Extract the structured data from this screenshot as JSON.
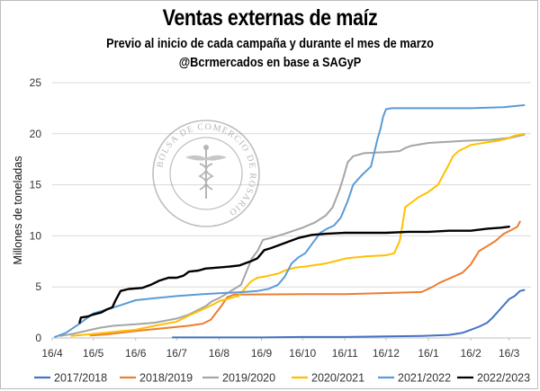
{
  "page": {
    "title": "Ventas externas de maíz",
    "subtitle_line1": "Previo al inicio de cada campaña y durante el mes de marzo",
    "subtitle_line2": "@Bcrmercados en base a SAGyP",
    "watermark_text": "BOLSA DE COMERCIO DE ROSARIO"
  },
  "chart_data": {
    "type": "line",
    "title": "Ventas externas de maíz",
    "subtitle": "Previo al inicio de cada campaña y durante el mes de marzo · @Bcrmercados en base a SAGyP",
    "ylabel": "Millones de toneladas",
    "xlabel": "",
    "ylim": [
      0,
      25
    ],
    "yticks": [
      0,
      5,
      10,
      15,
      20,
      25
    ],
    "xlim_days": [
      0,
      350
    ],
    "grid": "horizontal",
    "legend_position": "bottom",
    "x_ticks": [
      {
        "label": "16/4",
        "day": 0
      },
      {
        "label": "16/5",
        "day": 30
      },
      {
        "label": "16/6",
        "day": 61
      },
      {
        "label": "16/7",
        "day": 91
      },
      {
        "label": "16/8",
        "day": 122
      },
      {
        "label": "16/9",
        "day": 153
      },
      {
        "label": "16/10",
        "day": 183
      },
      {
        "label": "16/11",
        "day": 214
      },
      {
        "label": "16/12",
        "day": 244
      },
      {
        "label": "16/1",
        "day": 275
      },
      {
        "label": "16/2",
        "day": 306
      },
      {
        "label": "16/3",
        "day": 334
      }
    ],
    "series": [
      {
        "name": "2017/2018",
        "color": "#4472C4",
        "points": [
          [
            88,
            0.05
          ],
          [
            122,
            0.05
          ],
          [
            153,
            0.05
          ],
          [
            183,
            0.1
          ],
          [
            214,
            0.1
          ],
          [
            244,
            0.15
          ],
          [
            270,
            0.2
          ],
          [
            290,
            0.3
          ],
          [
            300,
            0.5
          ],
          [
            306,
            0.8
          ],
          [
            312,
            1.1
          ],
          [
            318,
            1.5
          ],
          [
            322,
            2.0
          ],
          [
            326,
            2.6
          ],
          [
            330,
            3.2
          ],
          [
            334,
            3.8
          ],
          [
            338,
            4.1
          ],
          [
            342,
            4.6
          ],
          [
            345,
            4.7
          ]
        ]
      },
      {
        "name": "2018/2019",
        "color": "#ED7D31",
        "points": [
          [
            28,
            0.25
          ],
          [
            40,
            0.35
          ],
          [
            55,
            0.6
          ],
          [
            70,
            0.8
          ],
          [
            85,
            1.0
          ],
          [
            100,
            1.2
          ],
          [
            110,
            1.4
          ],
          [
            116,
            1.8
          ],
          [
            120,
            2.5
          ],
          [
            124,
            3.2
          ],
          [
            128,
            4.0
          ],
          [
            133,
            4.25
          ],
          [
            183,
            4.3
          ],
          [
            214,
            4.3
          ],
          [
            244,
            4.4
          ],
          [
            270,
            4.5
          ],
          [
            278,
            5.0
          ],
          [
            283,
            5.4
          ],
          [
            290,
            5.8
          ],
          [
            300,
            6.4
          ],
          [
            306,
            7.2
          ],
          [
            312,
            8.5
          ],
          [
            318,
            9.0
          ],
          [
            324,
            9.5
          ],
          [
            330,
            10.2
          ],
          [
            336,
            10.6
          ],
          [
            340,
            10.9
          ],
          [
            342,
            11.4
          ]
        ]
      },
      {
        "name": "2019/2020",
        "color": "#A5A5A5",
        "points": [
          [
            6,
            0.2
          ],
          [
            15,
            0.4
          ],
          [
            25,
            0.7
          ],
          [
            35,
            1.0
          ],
          [
            45,
            1.2
          ],
          [
            61,
            1.35
          ],
          [
            75,
            1.5
          ],
          [
            91,
            1.9
          ],
          [
            100,
            2.3
          ],
          [
            106,
            2.7
          ],
          [
            112,
            3.1
          ],
          [
            117,
            3.6
          ],
          [
            122,
            3.9
          ],
          [
            127,
            4.3
          ],
          [
            133,
            4.8
          ],
          [
            138,
            5.2
          ],
          [
            142,
            6.5
          ],
          [
            146,
            7.8
          ],
          [
            150,
            8.5
          ],
          [
            154,
            9.6
          ],
          [
            160,
            9.8
          ],
          [
            170,
            10.2
          ],
          [
            183,
            10.8
          ],
          [
            192,
            11.3
          ],
          [
            200,
            12.0
          ],
          [
            205,
            12.8
          ],
          [
            210,
            14.5
          ],
          [
            213,
            15.8
          ],
          [
            216,
            17.2
          ],
          [
            220,
            17.8
          ],
          [
            228,
            18.1
          ],
          [
            244,
            18.2
          ],
          [
            254,
            18.3
          ],
          [
            258,
            18.6
          ],
          [
            262,
            18.8
          ],
          [
            275,
            19.1
          ],
          [
            300,
            19.3
          ],
          [
            320,
            19.4
          ],
          [
            335,
            19.6
          ],
          [
            345,
            19.9
          ]
        ]
      },
      {
        "name": "2020/2021",
        "color": "#FFC000",
        "points": [
          [
            14,
            0.2
          ],
          [
            30,
            0.4
          ],
          [
            45,
            0.6
          ],
          [
            61,
            0.8
          ],
          [
            75,
            1.2
          ],
          [
            91,
            1.6
          ],
          [
            100,
            2.2
          ],
          [
            110,
            2.8
          ],
          [
            118,
            3.3
          ],
          [
            122,
            3.6
          ],
          [
            130,
            3.9
          ],
          [
            136,
            4.1
          ],
          [
            140,
            4.7
          ],
          [
            145,
            5.5
          ],
          [
            150,
            5.9
          ],
          [
            155,
            6.0
          ],
          [
            165,
            6.3
          ],
          [
            170,
            6.6
          ],
          [
            178,
            6.9
          ],
          [
            185,
            7.0
          ],
          [
            200,
            7.3
          ],
          [
            215,
            7.8
          ],
          [
            230,
            8.0
          ],
          [
            244,
            8.1
          ],
          [
            250,
            8.3
          ],
          [
            254,
            9.5
          ],
          [
            256,
            11.0
          ],
          [
            258,
            12.8
          ],
          [
            262,
            13.2
          ],
          [
            268,
            13.8
          ],
          [
            275,
            14.3
          ],
          [
            282,
            15.0
          ],
          [
            288,
            16.5
          ],
          [
            293,
            17.8
          ],
          [
            297,
            18.3
          ],
          [
            303,
            18.7
          ],
          [
            306,
            18.9
          ],
          [
            315,
            19.1
          ],
          [
            325,
            19.3
          ],
          [
            332,
            19.5
          ],
          [
            338,
            19.8
          ],
          [
            345,
            20.0
          ]
        ]
      },
      {
        "name": "2021/2022",
        "color": "#5B9BD5",
        "points": [
          [
            2,
            0.1
          ],
          [
            10,
            0.5
          ],
          [
            20,
            1.4
          ],
          [
            30,
            2.4
          ],
          [
            40,
            2.8
          ],
          [
            50,
            3.2
          ],
          [
            61,
            3.7
          ],
          [
            75,
            3.9
          ],
          [
            91,
            4.1
          ],
          [
            110,
            4.3
          ],
          [
            125,
            4.4
          ],
          [
            140,
            4.5
          ],
          [
            150,
            4.6
          ],
          [
            158,
            4.8
          ],
          [
            165,
            5.2
          ],
          [
            170,
            6.0
          ],
          [
            175,
            7.3
          ],
          [
            180,
            7.9
          ],
          [
            185,
            8.3
          ],
          [
            191,
            9.4
          ],
          [
            196,
            10.3
          ],
          [
            201,
            10.7
          ],
          [
            206,
            11.0
          ],
          [
            211,
            11.8
          ],
          [
            216,
            13.4
          ],
          [
            220,
            15.0
          ],
          [
            226,
            15.9
          ],
          [
            233,
            16.8
          ],
          [
            238,
            19.6
          ],
          [
            240,
            20.5
          ],
          [
            242,
            21.7
          ],
          [
            244,
            22.4
          ],
          [
            248,
            22.5
          ],
          [
            275,
            22.5
          ],
          [
            306,
            22.5
          ],
          [
            330,
            22.6
          ],
          [
            345,
            22.8
          ]
        ]
      },
      {
        "name": "2022/2023",
        "color": "#000000",
        "points": [
          [
            20,
            1.5
          ],
          [
            21,
            2.0
          ],
          [
            26,
            2.1
          ],
          [
            30,
            2.3
          ],
          [
            36,
            2.5
          ],
          [
            40,
            2.8
          ],
          [
            44,
            3.0
          ],
          [
            46,
            3.6
          ],
          [
            50,
            4.6
          ],
          [
            56,
            4.8
          ],
          [
            66,
            4.9
          ],
          [
            72,
            5.2
          ],
          [
            78,
            5.6
          ],
          [
            85,
            5.9
          ],
          [
            91,
            5.9
          ],
          [
            96,
            6.1
          ],
          [
            100,
            6.5
          ],
          [
            107,
            6.6
          ],
          [
            112,
            6.8
          ],
          [
            122,
            6.9
          ],
          [
            130,
            7.0
          ],
          [
            137,
            7.1
          ],
          [
            145,
            7.5
          ],
          [
            150,
            7.8
          ],
          [
            155,
            8.6
          ],
          [
            160,
            8.8
          ],
          [
            170,
            9.3
          ],
          [
            180,
            9.8
          ],
          [
            190,
            10.1
          ],
          [
            200,
            10.2
          ],
          [
            214,
            10.3
          ],
          [
            244,
            10.3
          ],
          [
            260,
            10.4
          ],
          [
            275,
            10.4
          ],
          [
            290,
            10.5
          ],
          [
            306,
            10.5
          ],
          [
            318,
            10.7
          ],
          [
            328,
            10.8
          ],
          [
            334,
            10.9
          ]
        ]
      }
    ]
  }
}
